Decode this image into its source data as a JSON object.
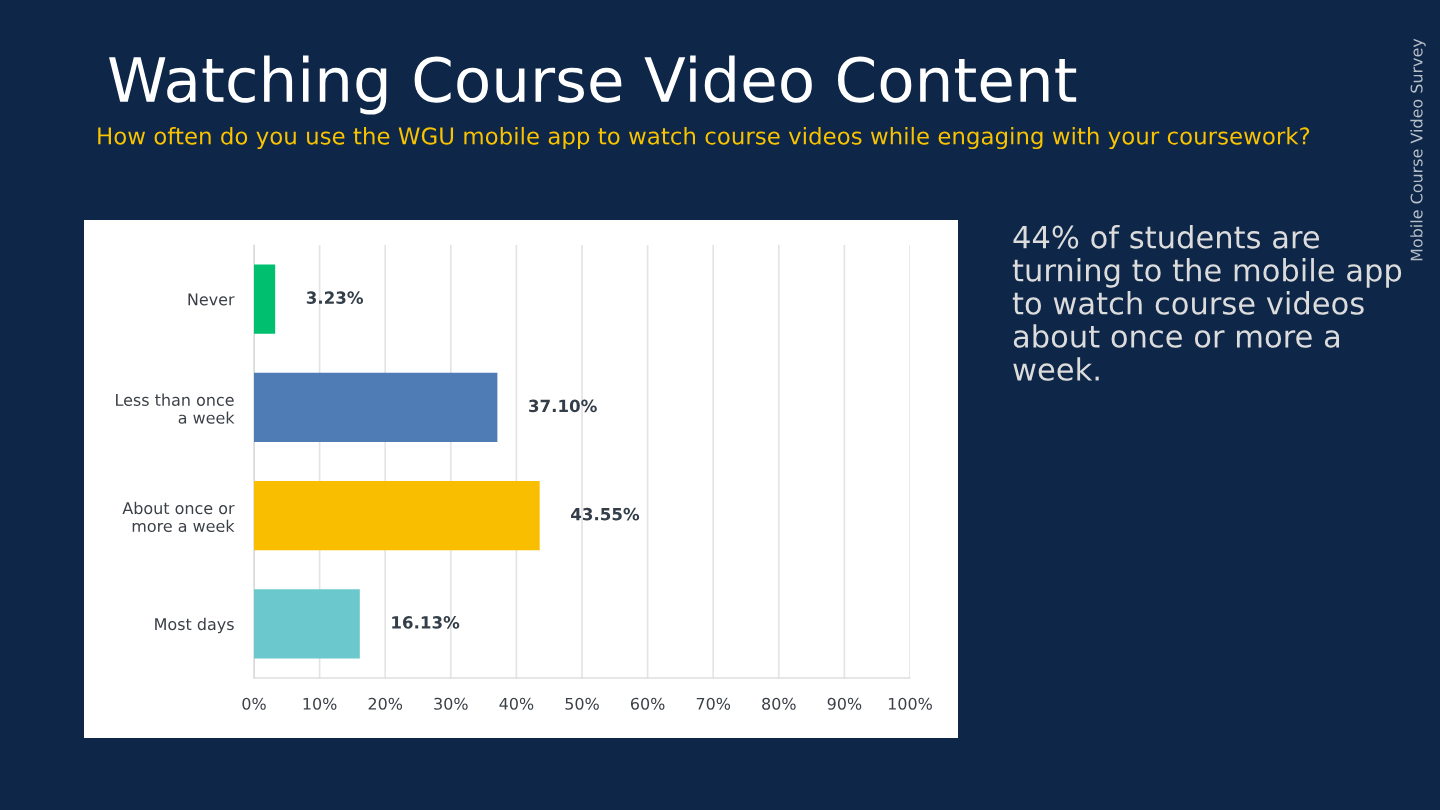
{
  "chart_data": {
    "type": "bar",
    "orientation": "horizontal",
    "title": "Watching Course Video Content",
    "subtitle": "How often do you use the WGU mobile app to watch course videos while engaging with your coursework?",
    "categories": [
      "Never",
      "Less than once\na week",
      "About once or\nmore a week",
      "Most days"
    ],
    "values": [
      3.23,
      37.1,
      43.55,
      16.13
    ],
    "colors": [
      "#00bf6f",
      "#507cb6",
      "#f9be00",
      "#6bc8cd"
    ],
    "value_labels": [
      "3.23%",
      "37.10%",
      "43.55%",
      "16.13%"
    ],
    "xlim": [
      0,
      100
    ],
    "xticks": [
      {
        "value": 0,
        "label": "0%"
      },
      {
        "value": 10,
        "label": "10%"
      },
      {
        "value": 20,
        "label": "20%"
      },
      {
        "value": 30,
        "label": "30%"
      },
      {
        "value": 40,
        "label": "40%"
      },
      {
        "value": 50,
        "label": "50%"
      },
      {
        "value": 60,
        "label": "60%"
      },
      {
        "value": 70,
        "label": "70%"
      },
      {
        "value": 80,
        "label": "80%"
      },
      {
        "value": 90,
        "label": "90%"
      },
      {
        "value": 100,
        "label": "100%"
      }
    ],
    "grid": "x",
    "annotations": [
      "44% of students are turning to the mobile app to watch course videos about once or more a week.",
      "Mobile Course Video Survey"
    ]
  }
}
